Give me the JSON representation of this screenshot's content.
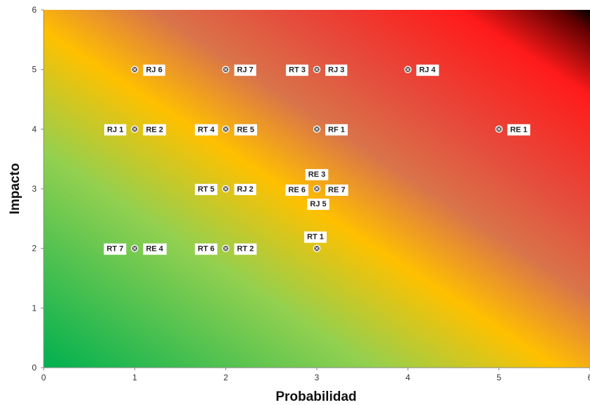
{
  "chart_data": {
    "type": "scatter",
    "title": "",
    "xlabel": "Probabilidad",
    "ylabel": "Impacto",
    "xlim": [
      0,
      6
    ],
    "ylim": [
      0,
      6
    ],
    "xticks": [
      "0",
      "1",
      "2",
      "3",
      "4",
      "5",
      "6"
    ],
    "yticks": [
      "0",
      "1",
      "2",
      "3",
      "4",
      "5",
      "6"
    ],
    "grid": false,
    "background": "risk heat gradient: green (low) -> yellow -> red -> black (high)",
    "colors": {
      "low": "#00b050",
      "mid_light": "#92d050",
      "mid": "#ffc000",
      "high": "#e84c3d",
      "max": "#ff0000",
      "extreme": "#000000",
      "marker": "#555555"
    },
    "points": [
      {
        "x": 1,
        "y": 5,
        "labels": [
          "RJ 6"
        ]
      },
      {
        "x": 2,
        "y": 5,
        "labels": [
          "RJ 7"
        ]
      },
      {
        "x": 3,
        "y": 5,
        "labels": [
          "RT 3",
          "RJ 3"
        ]
      },
      {
        "x": 4,
        "y": 5,
        "labels": [
          "RJ 4"
        ]
      },
      {
        "x": 1,
        "y": 4,
        "labels": [
          "RJ 1",
          "RE 2"
        ]
      },
      {
        "x": 2,
        "y": 4,
        "labels": [
          "RT 4",
          "RE 5"
        ]
      },
      {
        "x": 3,
        "y": 4,
        "labels": [
          "RF 1"
        ]
      },
      {
        "x": 5,
        "y": 4,
        "labels": [
          "RE 1"
        ]
      },
      {
        "x": 2,
        "y": 3,
        "labels": [
          "RT 5",
          "RJ 2"
        ]
      },
      {
        "x": 3,
        "y": 3,
        "labels": [
          "RE 3",
          "RE 6",
          "RE 7",
          "RJ 5"
        ]
      },
      {
        "x": 1,
        "y": 2,
        "labels": [
          "RT 7",
          "RE 4"
        ]
      },
      {
        "x": 2,
        "y": 2,
        "labels": [
          "RT 6",
          "RT 2"
        ]
      },
      {
        "x": 3,
        "y": 2,
        "labels": [
          "RT 1"
        ]
      }
    ]
  }
}
